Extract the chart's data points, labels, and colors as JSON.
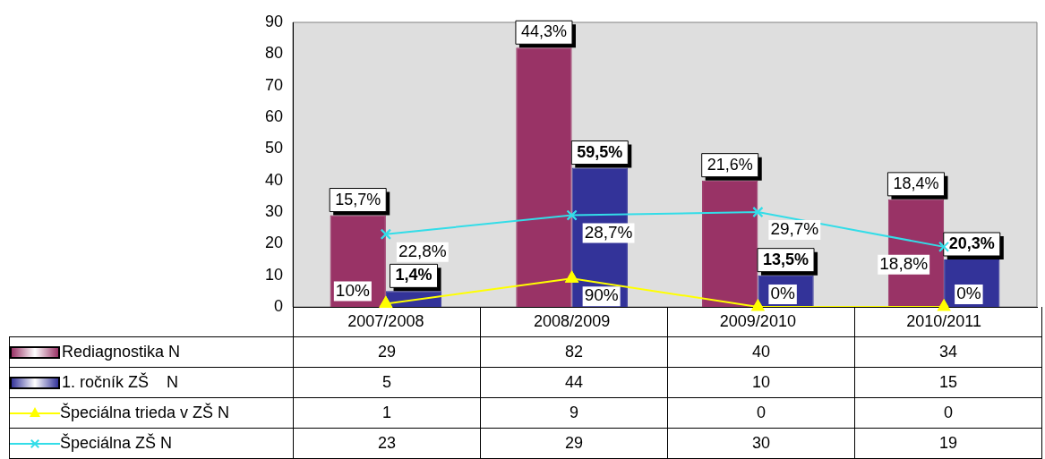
{
  "chart_data": {
    "type": "bar",
    "categories": [
      "2007/2008",
      "2008/2009",
      "2009/2010",
      "2010/2011"
    ],
    "series": [
      {
        "name": "Rediagnostika N",
        "color": "#993366",
        "values": [
          29,
          82,
          40,
          34
        ]
      },
      {
        "name": "1. ročník ZŠ    N",
        "color": "#333399",
        "values": [
          5,
          44,
          10,
          15
        ]
      },
      {
        "name": "Špeciálna trieda v ZŠ N",
        "type": "line",
        "marker": "triangle",
        "color": "#ffff00",
        "values": [
          1,
          9,
          0,
          0
        ]
      },
      {
        "name": "Špeciálna ZŠ N",
        "type": "line",
        "marker": "cross",
        "color": "#33dde8",
        "values": [
          23,
          29,
          30,
          19
        ]
      }
    ],
    "annotations": [
      {
        "text": "15,7%",
        "x": "2007/2008",
        "y": 29
      },
      {
        "text": "44,3%",
        "x": "2008/2009",
        "y": 82
      },
      {
        "text": "21,6%",
        "x": "2009/2010",
        "y": 40
      },
      {
        "text": "18,4%",
        "x": "2010/2011",
        "y": 34
      },
      {
        "text": "1,4%",
        "x": "2007/2008",
        "y": 5
      },
      {
        "text": "59,5%",
        "x": "2008/2009",
        "y": 44
      },
      {
        "text": "13,5%",
        "x": "2009/2010",
        "y": 10
      },
      {
        "text": "20,3%",
        "x": "2010/2011",
        "y": 15
      },
      {
        "text": "10%",
        "x": "2007/2008",
        "y": 1
      },
      {
        "text": "90%",
        "x": "2008/2009",
        "y": 9
      },
      {
        "text": "0%",
        "x": "2009/2010",
        "y": 0
      },
      {
        "text": "0%",
        "x": "2010/2011",
        "y": 0
      },
      {
        "text": "22,8%",
        "x": "2007/2008",
        "y": 23
      },
      {
        "text": "28,7%",
        "x": "2008/2009",
        "y": 29
      },
      {
        "text": "29,7%",
        "x": "2009/2010",
        "y": 30
      },
      {
        "text": "18,8%",
        "x": "2010/2011",
        "y": 19
      }
    ],
    "ylim": [
      0,
      90
    ],
    "yticks": [
      0,
      10,
      20,
      30,
      40,
      50,
      60,
      70,
      80,
      90
    ],
    "grid": false,
    "legend": "bottom left",
    "data_labels": true
  }
}
